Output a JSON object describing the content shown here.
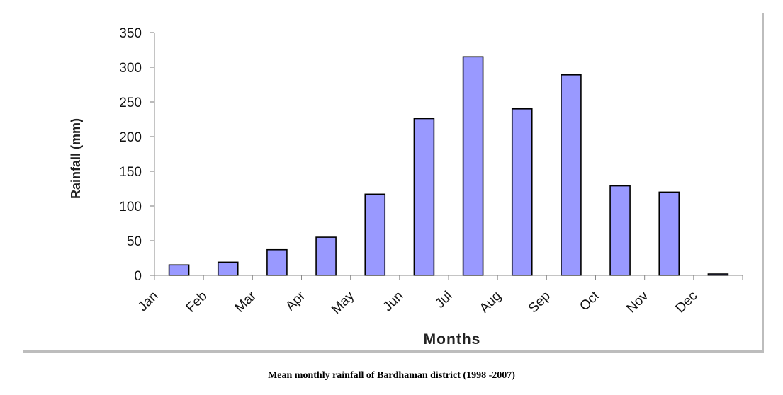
{
  "chart_data": {
    "type": "bar",
    "categories": [
      "Jan",
      "Feb",
      "Mar",
      "Apr",
      "May",
      "Jun",
      "Jul",
      "Aug",
      "Sep",
      "Oct",
      "Nov",
      "Dec"
    ],
    "values": [
      15,
      19,
      37,
      55,
      117,
      226,
      315,
      240,
      289,
      129,
      120,
      2
    ],
    "ylabel": "Rainfall (mm)",
    "xlabel": "Months",
    "ylim": [
      0,
      350
    ],
    "yticks": [
      0,
      50,
      100,
      150,
      200,
      250,
      300,
      350
    ],
    "grid": false,
    "legend": "none",
    "bar_color": "#9999ff",
    "bar_edge_color": "#000000"
  },
  "caption": "Mean monthly rainfall of Bardhaman district (1998 -2007)"
}
